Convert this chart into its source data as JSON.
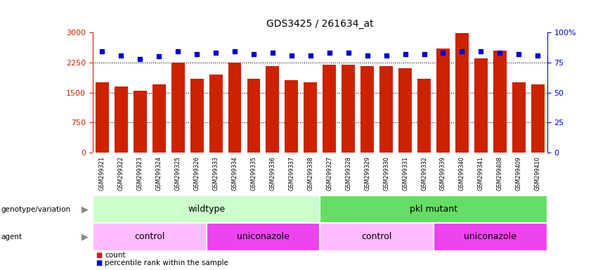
{
  "title": "GDS3425 / 261634_at",
  "samples": [
    "GSM299321",
    "GSM299322",
    "GSM299323",
    "GSM299324",
    "GSM299325",
    "GSM299326",
    "GSM299333",
    "GSM299334",
    "GSM299335",
    "GSM299336",
    "GSM299337",
    "GSM299338",
    "GSM299327",
    "GSM299328",
    "GSM299329",
    "GSM299330",
    "GSM299331",
    "GSM299332",
    "GSM299339",
    "GSM299340",
    "GSM299341",
    "GSM299408",
    "GSM299409",
    "GSM299410"
  ],
  "counts": [
    1750,
    1650,
    1550,
    1700,
    2250,
    1850,
    1950,
    2250,
    1850,
    2150,
    1800,
    1750,
    2200,
    2200,
    2150,
    2150,
    2100,
    1850,
    2600,
    2980,
    2350,
    2550,
    1750,
    1700
  ],
  "percentile": [
    84,
    81,
    78,
    80,
    84,
    82,
    83,
    84,
    82,
    83,
    81,
    81,
    83,
    83,
    81,
    81,
    82,
    82,
    83,
    84,
    84,
    83,
    82,
    81
  ],
  "bar_color": "#cc2200",
  "dot_color": "#0000cc",
  "ylim_left": [
    0,
    3000
  ],
  "ylim_right": [
    0,
    100
  ],
  "yticks_left": [
    0,
    750,
    1500,
    2250,
    3000
  ],
  "yticks_right": [
    0,
    25,
    50,
    75,
    100
  ],
  "grid_lines": [
    750,
    1500,
    2250
  ],
  "genotype_groups": [
    {
      "label": "wildtype",
      "start": 0,
      "end": 12,
      "color": "#ccffcc"
    },
    {
      "label": "pkl mutant",
      "start": 12,
      "end": 24,
      "color": "#66dd66"
    }
  ],
  "agent_groups": [
    {
      "label": "control",
      "start": 0,
      "end": 6,
      "color": "#ffbbff"
    },
    {
      "label": "uniconazole",
      "start": 6,
      "end": 12,
      "color": "#ee44ee"
    },
    {
      "label": "control",
      "start": 12,
      "end": 18,
      "color": "#ffbbff"
    },
    {
      "label": "uniconazole",
      "start": 18,
      "end": 24,
      "color": "#ee44ee"
    }
  ],
  "legend_items": [
    {
      "label": "count",
      "color": "#cc2200"
    },
    {
      "label": "percentile rank within the sample",
      "color": "#0000cc"
    }
  ],
  "left_axis_color": "#cc2200",
  "right_axis_color": "#0000cc",
  "xtick_bg": "#dddddd"
}
